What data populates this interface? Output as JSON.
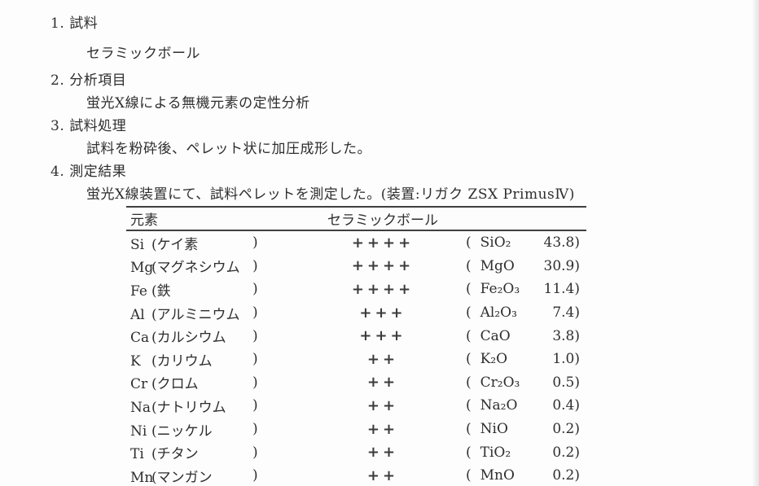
{
  "page": {
    "background": "#fdfdfd",
    "text_color": "#2e2e2e",
    "rule_color": "#3f3f3f"
  },
  "sections": [
    {
      "number": "1.",
      "title": "試料",
      "body": "セラミックボール"
    },
    {
      "number": "2.",
      "title": "分析項目",
      "body": "蛍光X線による無機元素の定性分析"
    },
    {
      "number": "3.",
      "title": "試料処理",
      "body": "試料を粉砕後、ペレット状に加圧成形した。"
    },
    {
      "number": "4.",
      "title": "測定結果",
      "body": "蛍光X線装置にて、試料ペレットを測定した。(装置:リガク ZSX PrimusⅣ)"
    }
  ],
  "table": {
    "header": {
      "element": "元素",
      "sample": "セラミックボール"
    },
    "paren_open": "(",
    "paren_close": ")",
    "rows": [
      {
        "symbol": "Si",
        "name": "ケイ素",
        "intensity": "++++",
        "oxide": "SiO₂",
        "value": "43.8"
      },
      {
        "symbol": "Mg",
        "name": "マグネシウム",
        "intensity": "++++",
        "oxide": "MgO",
        "value": "30.9"
      },
      {
        "symbol": "Fe",
        "name": "鉄",
        "intensity": "++++",
        "oxide": "Fe₂O₃",
        "value": "11.4"
      },
      {
        "symbol": "Al",
        "name": "アルミニウム",
        "intensity": "+++",
        "oxide": "Al₂O₃",
        "value": "7.4"
      },
      {
        "symbol": "Ca",
        "name": "カルシウム",
        "intensity": "+++",
        "oxide": "CaO",
        "value": "3.8"
      },
      {
        "symbol": "K",
        "name": "カリウム",
        "intensity": "++",
        "oxide": "K₂O",
        "value": "1.0"
      },
      {
        "symbol": "Cr",
        "name": "クロム",
        "intensity": "++",
        "oxide": "Cr₂O₃",
        "value": "0.5"
      },
      {
        "symbol": "Na",
        "name": "ナトリウム",
        "intensity": "++",
        "oxide": "Na₂O",
        "value": "0.4"
      },
      {
        "symbol": "Ni",
        "name": "ニッケル",
        "intensity": "++",
        "oxide": "NiO",
        "value": "0.2"
      },
      {
        "symbol": "Ti",
        "name": "チタン",
        "intensity": "++",
        "oxide": "TiO₂",
        "value": "0.2"
      },
      {
        "symbol": "Mn",
        "name": "マンガン",
        "intensity": "++",
        "oxide": "MnO",
        "value": "0.2"
      }
    ]
  }
}
